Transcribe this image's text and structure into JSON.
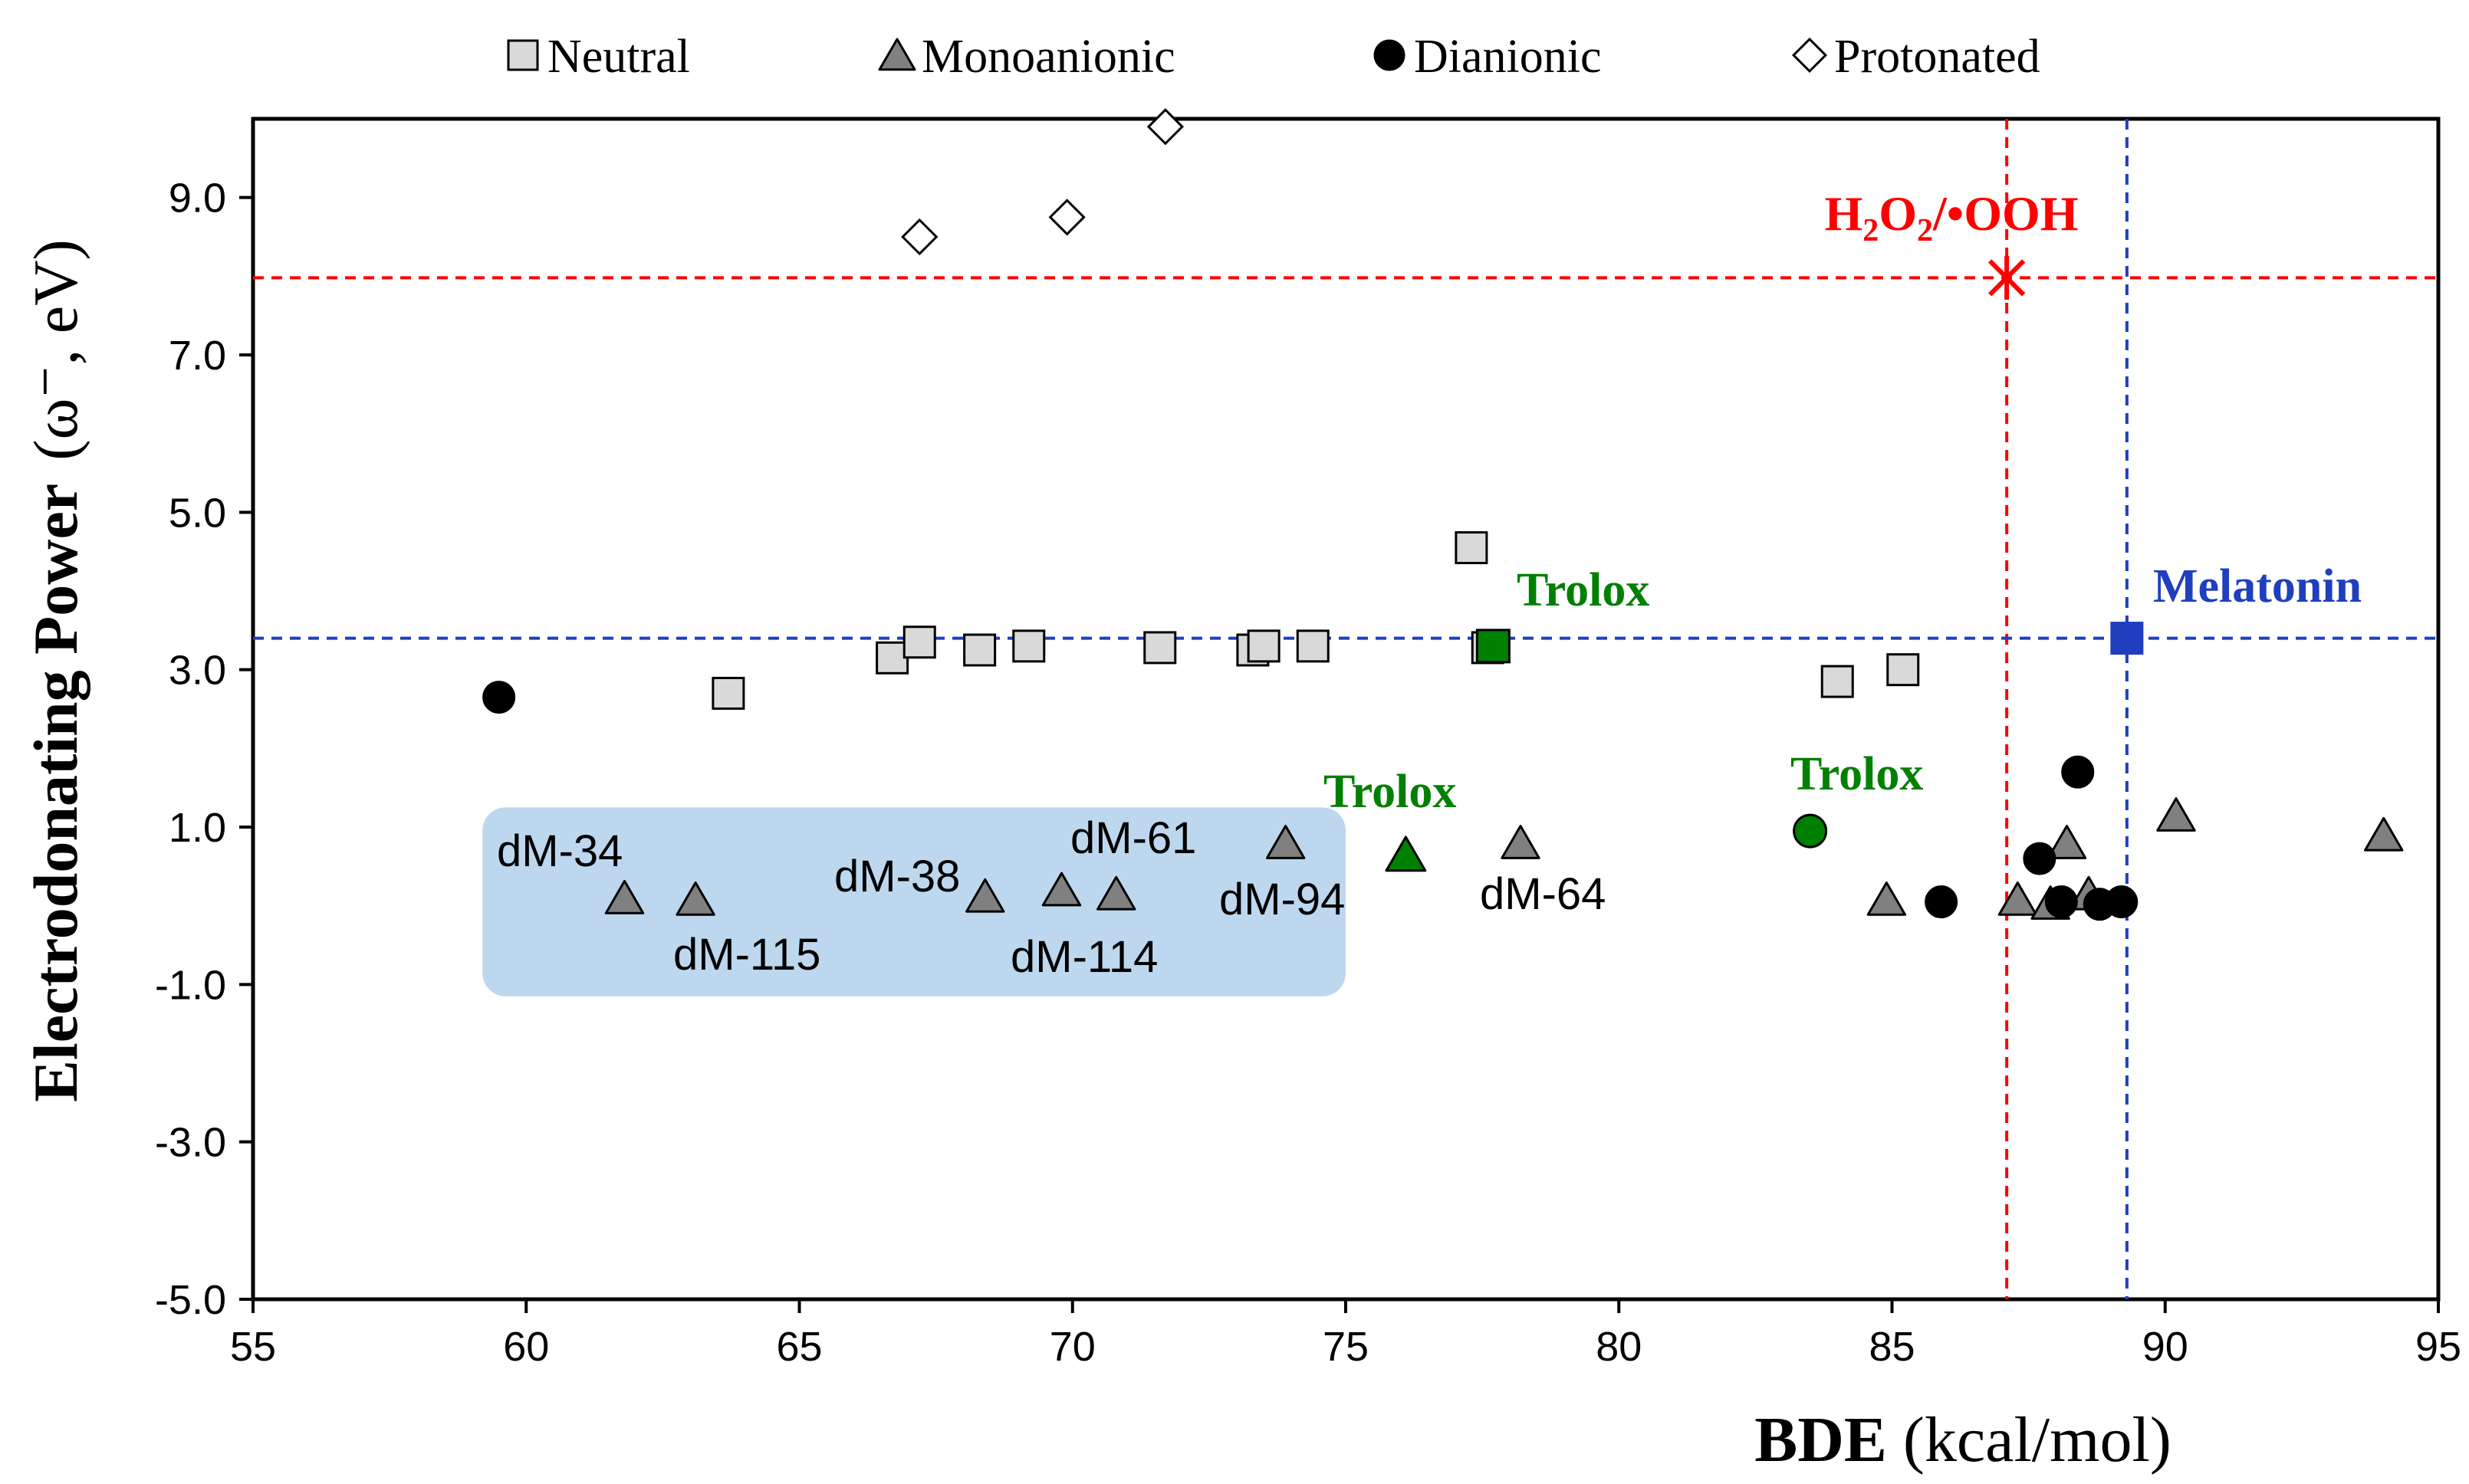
{
  "chart_data": {
    "type": "scatter",
    "xlabel": {
      "bold": "BDE",
      "rest": " (kcal/mol)"
    },
    "ylabel": {
      "bold": "Electrodonating Power",
      "rest": "(ω⁻, eV)"
    },
    "xlim": [
      55,
      95
    ],
    "ylim": [
      -5,
      10
    ],
    "xticks": [
      "55",
      "60",
      "65",
      "70",
      "75",
      "80",
      "85",
      "90",
      "95"
    ],
    "yticks": [
      "-5.0",
      "-3.0",
      "-1.0",
      "1.0",
      "3.0",
      "5.0",
      "7.0",
      "9.0"
    ],
    "grid": false,
    "legend_position": "top",
    "legend": [
      {
        "label": "Neutral",
        "marker": "square",
        "fill": "#d9d9d9"
      },
      {
        "label": "Monoanionic",
        "marker": "triangle",
        "fill": "#808080"
      },
      {
        "label": "Dianionic",
        "marker": "circle",
        "fill": "#000000"
      },
      {
        "label": "Protonated",
        "marker": "diamond",
        "fill": "#ffffff"
      }
    ],
    "series": [
      {
        "name": "Neutral",
        "marker": "square",
        "fill": "#d9d9d9",
        "stroke": "#000000",
        "points": [
          [
            63.7,
            2.7
          ],
          [
            66.7,
            3.15
          ],
          [
            67.2,
            3.35
          ],
          [
            68.3,
            3.25
          ],
          [
            69.2,
            3.3
          ],
          [
            71.6,
            3.28
          ],
          [
            73.3,
            3.25
          ],
          [
            73.5,
            3.3
          ],
          [
            74.4,
            3.3
          ],
          [
            77.3,
            4.55
          ],
          [
            77.6,
            3.28
          ],
          [
            84.0,
            2.85
          ],
          [
            85.2,
            3.0
          ]
        ]
      },
      {
        "name": "Monoanionic",
        "marker": "triangle",
        "fill": "#808080",
        "stroke": "#000000",
        "points": [
          [
            61.8,
            0.1
          ],
          [
            63.1,
            0.08
          ],
          [
            68.4,
            0.12
          ],
          [
            69.8,
            0.2
          ],
          [
            70.8,
            0.15
          ],
          [
            73.9,
            0.8
          ],
          [
            78.2,
            0.8
          ],
          [
            84.9,
            0.08
          ],
          [
            87.3,
            0.08
          ],
          [
            87.9,
            0.03
          ],
          [
            88.2,
            0.8
          ],
          [
            88.6,
            0.15
          ],
          [
            90.2,
            1.15
          ],
          [
            94.0,
            0.9
          ]
        ]
      },
      {
        "name": "Dianionic",
        "marker": "circle",
        "fill": "#000000",
        "stroke": "#000000",
        "points": [
          [
            59.5,
            2.65
          ],
          [
            85.9,
            0.05
          ],
          [
            87.7,
            0.6
          ],
          [
            88.1,
            0.05
          ],
          [
            88.4,
            1.7
          ],
          [
            88.8,
            0.02
          ],
          [
            89.2,
            0.05
          ]
        ]
      },
      {
        "name": "Protonated",
        "marker": "diamond",
        "fill": "#ffffff",
        "stroke": "#000000",
        "points": [
          [
            67.2,
            8.5
          ],
          [
            69.9,
            8.75
          ],
          [
            71.7,
            9.9
          ]
        ]
      }
    ],
    "references": [
      {
        "label": "H₂O₂/•OOH",
        "x": 87.1,
        "y": 7.98,
        "color": "#ff0000",
        "marker": "star"
      },
      {
        "label": "Melatonin",
        "x": 89.3,
        "y": 3.4,
        "color": "#1f3fbf",
        "marker": "square"
      }
    ],
    "trolox": [
      {
        "label": "Trolox",
        "x": 77.7,
        "y": 3.3,
        "marker": "square",
        "color": "#008000"
      },
      {
        "label": "Trolox",
        "x": 76.1,
        "y": 0.65,
        "marker": "triangle",
        "color": "#008000"
      },
      {
        "label": "Trolox",
        "x": 83.5,
        "y": 0.95,
        "marker": "circle",
        "color": "#008000"
      }
    ],
    "annotations": [
      "dM-34",
      "dM-115",
      "dM-38",
      "dM-61",
      "dM-114",
      "dM-94",
      "dM-64"
    ],
    "highlight_region": {
      "x": [
        59.2,
        75.0
      ],
      "y": [
        -1.15,
        1.25
      ],
      "color": "#bdd7ee"
    }
  }
}
